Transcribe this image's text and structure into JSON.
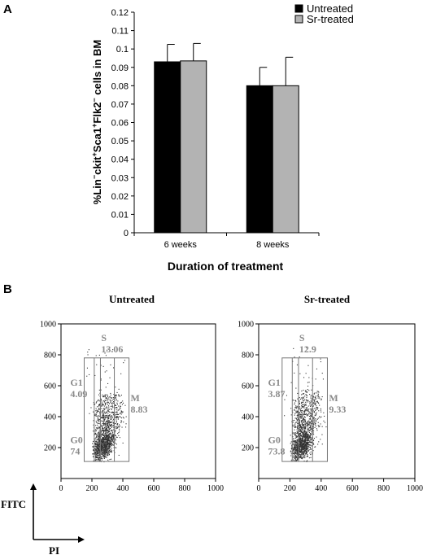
{
  "panel_a": {
    "label": "A",
    "ylabel_parts": [
      "%Lin",
      "−",
      "ckit",
      "+",
      "Sca1",
      "+",
      "Flk2",
      "−",
      " cells in BM"
    ],
    "xlabel": "Duration of treatment"
  },
  "panel_b": {
    "label": "B",
    "left_title": "Untreated",
    "right_title": "Sr-treated",
    "axis_x_name": "PI",
    "axis_y_name": "FITC"
  },
  "chart_data": [
    {
      "type": "bar",
      "categories": [
        "6 weeks",
        "8 weeks"
      ],
      "series": [
        {
          "name": "Untreated",
          "color": "#000000",
          "values": [
            0.093,
            0.08
          ],
          "errors": [
            0.0095,
            0.01
          ]
        },
        {
          "name": "Sr-treated",
          "color": "#b3b3b3",
          "values": [
            0.0935,
            0.08
          ],
          "errors": [
            0.0095,
            0.0155
          ]
        }
      ],
      "ylabel": "%Lin−ckit+Sca1+Flk2− cells in BM",
      "xlabel": "Duration of treatment",
      "ylim": [
        0,
        0.12
      ],
      "yticks": [
        "0",
        "0.01",
        "0.02",
        "0.03",
        "0.04",
        "0.05",
        "0.06",
        "0.07",
        "0.08",
        "0.09",
        "0.1",
        "0.11",
        "0.12"
      ],
      "legend": "top-right"
    },
    {
      "type": "scatter",
      "title": "Untreated",
      "xlim": [
        0,
        1000
      ],
      "ylim": [
        0,
        1000
      ],
      "xticks": [
        "0",
        "200",
        "400",
        "600",
        "800",
        "1000"
      ],
      "yticks": [
        "200",
        "400",
        "600",
        "800",
        "1000"
      ],
      "gates": [
        {
          "name": "G1",
          "value": "4.09"
        },
        {
          "name": "G0",
          "value": "74"
        },
        {
          "name": "S",
          "value": "13.06"
        },
        {
          "name": "M",
          "value": "8.83"
        }
      ]
    },
    {
      "type": "scatter",
      "title": "Sr-treated",
      "xlim": [
        0,
        1000
      ],
      "ylim": [
        0,
        1000
      ],
      "xticks": [
        "0",
        "200",
        "400",
        "600",
        "800",
        "1000"
      ],
      "yticks": [
        "200",
        "400",
        "600",
        "800",
        "1000"
      ],
      "gates": [
        {
          "name": "G1",
          "value": "3.87"
        },
        {
          "name": "G0",
          "value": "73.8"
        },
        {
          "name": "S",
          "value": "12.9"
        },
        {
          "name": "M",
          "value": "9.33"
        }
      ]
    }
  ]
}
